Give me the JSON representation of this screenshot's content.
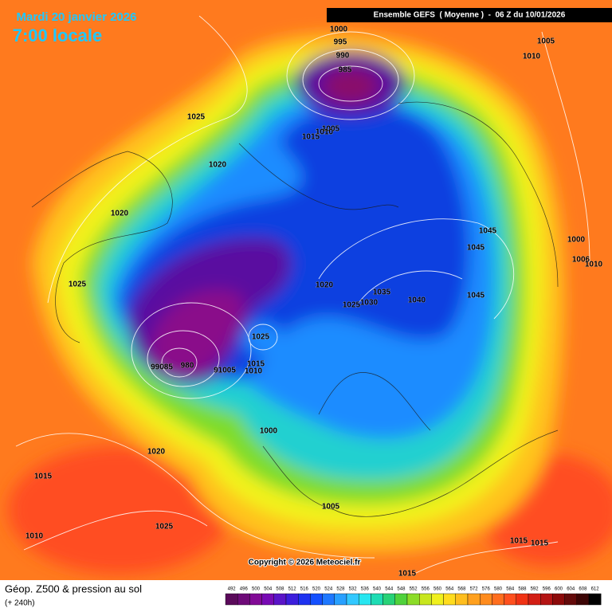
{
  "header": {
    "date": "Mardi 20 janvier 2026",
    "time": "7:00 locale",
    "run": "Ensemble GEFS  ( Moyenne )  -  06 Z du 10/01/2026"
  },
  "isobars": [
    "1000",
    "995",
    "990",
    "985",
    "1005",
    "1010",
    "1025",
    "1005",
    "1015",
    "1010",
    "1020",
    "1020",
    "1025",
    "1045",
    "1045",
    "1000",
    "1006",
    "1010",
    "1020",
    "1035",
    "1040",
    "1045",
    "1025",
    "1030",
    "1025",
    "99085",
    "980",
    "91005",
    "1010",
    "1015",
    "1000",
    "1020",
    "1015",
    "1025",
    "1010",
    "1005",
    "1015",
    "1015",
    "1015"
  ],
  "copyright": "Copyright © 2026 Meteociel.fr",
  "footer": {
    "title": "Géop. Z500 & pression au sol",
    "lead": "(+ 240h)"
  },
  "colorbar": [
    492,
    496,
    500,
    504,
    508,
    512,
    516,
    520,
    524,
    528,
    532,
    536,
    540,
    544,
    548,
    552,
    556,
    560,
    564,
    568,
    572,
    576,
    580,
    584,
    588,
    592,
    596,
    600,
    604,
    608,
    612
  ]
}
